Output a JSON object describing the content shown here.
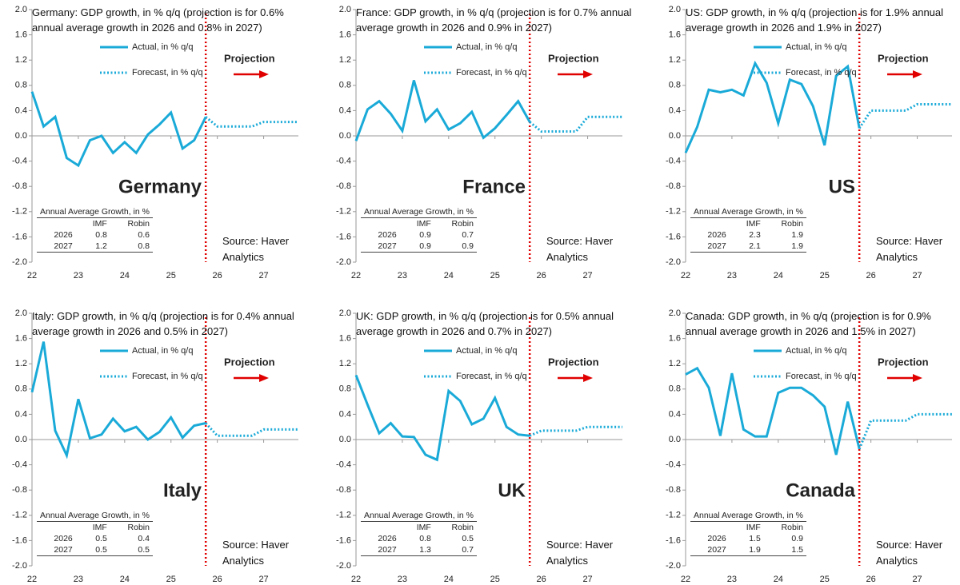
{
  "chart_data": [
    {
      "type": "line",
      "title": "Germany: GDP growth, in % q/q (projection is for 0.6% annual average growth in 2026 and 0.8% in 2027)",
      "country": "Germany",
      "x": [
        22,
        22.25,
        22.5,
        22.75,
        23,
        23.25,
        23.5,
        23.75,
        24,
        24.25,
        24.5,
        24.75,
        25,
        25.25,
        25.5,
        25.75,
        26,
        26.25,
        26.5,
        26.75,
        27,
        27.25,
        27.5,
        27.75
      ],
      "series": [
        {
          "name": "Actual, in % q/q",
          "color": "#1aaad8",
          "style": "solid",
          "values": [
            0.7,
            0.15,
            0.3,
            -0.35,
            -0.47,
            -0.07,
            0,
            -0.27,
            -0.1,
            -0.27,
            0.02,
            0.18,
            0.37,
            -0.2,
            -0.07,
            0.3,
            null,
            null,
            null,
            null,
            null,
            null,
            null,
            null
          ]
        },
        {
          "name": "Forecast, in % q/q",
          "color": "#1aaad8",
          "style": "dotted",
          "values": [
            null,
            null,
            null,
            null,
            null,
            null,
            null,
            null,
            null,
            null,
            null,
            null,
            null,
            null,
            null,
            0.3,
            0.15,
            0.15,
            0.15,
            0.15,
            0.22,
            0.22,
            0.22,
            0.22
          ]
        }
      ],
      "xlim": [
        22,
        27.75
      ],
      "xticks": [
        22,
        23,
        24,
        25,
        26,
        27
      ],
      "ylim": [
        -2,
        2
      ],
      "yticks": [
        {
          "value": -2,
          "label": "-2.0"
        },
        {
          "value": -1.6,
          "label": "-1.6"
        },
        {
          "value": -1.2,
          "label": "-1.2"
        },
        {
          "value": -0.8,
          "label": "-0.8"
        },
        {
          "value": -0.4,
          "label": "-0.4"
        },
        {
          "value": 0,
          "label": "0.0"
        },
        {
          "value": 0.4,
          "label": "0.4"
        },
        {
          "value": 0.8,
          "label": "0.8"
        },
        {
          "value": 1.2,
          "label": "1.2"
        },
        {
          "value": 1.6,
          "label": "1.6"
        },
        {
          "value": 2,
          "label": "2.0"
        }
      ],
      "projection_x": 25.75,
      "projection_label": "Projection",
      "projection_color": "#e00000",
      "table": {
        "title": "Annual Average Growth, in %",
        "columns": [
          "IMF",
          "Robin"
        ],
        "rows": [
          [
            "2026",
            0.8,
            0.6
          ],
          [
            "2027",
            1.2,
            0.8
          ]
        ]
      },
      "source": "Source: Haver Analytics"
    },
    {
      "type": "line",
      "title": "France: GDP growth, in % q/q (projection is for 0.7% annual average growth in 2026 and 0.9% in 2027)",
      "country": "France",
      "x": [
        22,
        22.25,
        22.5,
        22.75,
        23,
        23.25,
        23.5,
        23.75,
        24,
        24.25,
        24.5,
        24.75,
        25,
        25.25,
        25.5,
        25.75,
        26,
        26.25,
        26.5,
        26.75,
        27,
        27.25,
        27.5,
        27.75
      ],
      "series": [
        {
          "name": "Actual, in % q/q",
          "color": "#1aaad8",
          "style": "solid",
          "values": [
            -0.08,
            0.42,
            0.55,
            0.35,
            0.08,
            0.88,
            0.23,
            0.42,
            0.1,
            0.2,
            0.38,
            -0.03,
            0.12,
            0.33,
            0.55,
            0.22,
            null,
            null,
            null,
            null,
            null,
            null,
            null,
            null
          ]
        },
        {
          "name": "Forecast, in % q/q",
          "color": "#1aaad8",
          "style": "dotted",
          "values": [
            null,
            null,
            null,
            null,
            null,
            null,
            null,
            null,
            null,
            null,
            null,
            null,
            null,
            null,
            null,
            0.22,
            0.07,
            0.07,
            0.07,
            0.07,
            0.3,
            0.3,
            0.3,
            0.3
          ]
        }
      ],
      "xlim": [
        22,
        27.75
      ],
      "xticks": [
        22,
        23,
        24,
        25,
        26,
        27
      ],
      "ylim": [
        -2,
        2
      ],
      "yticks": [
        {
          "value": -2,
          "label": "-2.0"
        },
        {
          "value": -1.6,
          "label": "-1.6"
        },
        {
          "value": -1.2,
          "label": "-1.2"
        },
        {
          "value": -0.8,
          "label": "-0.8"
        },
        {
          "value": -0.4,
          "label": "-0.4"
        },
        {
          "value": 0,
          "label": "0.0"
        },
        {
          "value": 0.4,
          "label": "0.4"
        },
        {
          "value": 0.8,
          "label": "0.8"
        },
        {
          "value": 1.2,
          "label": "1.2"
        },
        {
          "value": 1.6,
          "label": "1.6"
        },
        {
          "value": 2,
          "label": "2.0"
        }
      ],
      "projection_x": 25.75,
      "projection_label": "Projection",
      "projection_color": "#e00000",
      "table": {
        "title": "Annual Average Growth, in %",
        "columns": [
          "IMF",
          "Robin"
        ],
        "rows": [
          [
            "2026",
            0.9,
            0.7
          ],
          [
            "2027",
            0.9,
            0.9
          ]
        ]
      },
      "source": "Source: Haver Analytics"
    },
    {
      "type": "line",
      "title": "US: GDP growth, in % q/q (projection is for 1.9% annual average growth in 2026 and 1.9% in 2027)",
      "country": "US",
      "x": [
        22,
        22.25,
        22.5,
        22.75,
        23,
        23.25,
        23.5,
        23.75,
        24,
        24.25,
        24.5,
        24.75,
        25,
        25.25,
        25.5,
        25.75,
        26,
        26.25,
        26.5,
        26.75,
        27,
        27.25,
        27.5,
        27.75
      ],
      "series": [
        {
          "name": "Actual, in % q/q",
          "color": "#1aaad8",
          "style": "solid",
          "values": [
            -0.27,
            0.14,
            0.73,
            0.69,
            0.73,
            0.64,
            1.15,
            0.84,
            0.2,
            0.89,
            0.82,
            0.47,
            -0.15,
            0.95,
            1.1,
            0.12,
            null,
            null,
            null,
            null,
            null,
            null,
            null,
            null
          ]
        },
        {
          "name": "Forecast, in % q/q",
          "color": "#1aaad8",
          "style": "dotted",
          "values": [
            null,
            null,
            null,
            null,
            null,
            null,
            null,
            null,
            null,
            null,
            null,
            null,
            null,
            null,
            null,
            0.12,
            0.4,
            0.4,
            0.4,
            0.4,
            0.5,
            0.5,
            0.5,
            0.5
          ]
        }
      ],
      "xlim": [
        22,
        27.75
      ],
      "xticks": [
        22,
        23,
        24,
        25,
        26,
        27
      ],
      "ylim": [
        -2,
        2
      ],
      "yticks": [
        {
          "value": -2,
          "label": "-2.0"
        },
        {
          "value": -1.6,
          "label": "-1.6"
        },
        {
          "value": -1.2,
          "label": "-1.2"
        },
        {
          "value": -0.8,
          "label": "-0.8"
        },
        {
          "value": -0.4,
          "label": "-0.4"
        },
        {
          "value": 0,
          "label": "0.0"
        },
        {
          "value": 0.4,
          "label": "0.4"
        },
        {
          "value": 0.8,
          "label": "0.8"
        },
        {
          "value": 1.2,
          "label": "1.2"
        },
        {
          "value": 1.6,
          "label": "1.6"
        },
        {
          "value": 2,
          "label": "2.0"
        }
      ],
      "projection_x": 25.75,
      "projection_label": "Projection",
      "projection_color": "#e00000",
      "table": {
        "title": "Annual Average Growth, in %",
        "columns": [
          "IMF",
          "Robin"
        ],
        "rows": [
          [
            "2026",
            2.3,
            1.9
          ],
          [
            "2027",
            2.1,
            1.9
          ]
        ]
      },
      "source": "Source: Haver Analytics"
    },
    {
      "type": "line",
      "title": "Italy: GDP growth, in % q/q (projection is for 0.4% annual average growth in 2026 and 0.5% in 2027)",
      "country": "Italy",
      "x": [
        22,
        22.25,
        22.5,
        22.75,
        23,
        23.25,
        23.5,
        23.75,
        24,
        24.25,
        24.5,
        24.75,
        25,
        25.25,
        25.5,
        25.75,
        26,
        26.25,
        26.5,
        26.75,
        27,
        27.25,
        27.5,
        27.75
      ],
      "series": [
        {
          "name": "Actual, in % q/q",
          "color": "#1aaad8",
          "style": "solid",
          "values": [
            0.75,
            1.55,
            0.14,
            -0.25,
            0.64,
            0.02,
            0.08,
            0.33,
            0.13,
            0.2,
            0,
            0.12,
            0.35,
            0.03,
            0.22,
            0.26,
            null,
            null,
            null,
            null,
            null,
            null,
            null,
            null
          ]
        },
        {
          "name": "Forecast, in % q/q",
          "color": "#1aaad8",
          "style": "dotted",
          "values": [
            null,
            null,
            null,
            null,
            null,
            null,
            null,
            null,
            null,
            null,
            null,
            null,
            null,
            null,
            null,
            0.26,
            0.06,
            0.06,
            0.06,
            0.06,
            0.16,
            0.16,
            0.16,
            0.16
          ]
        }
      ],
      "xlim": [
        22,
        27.75
      ],
      "xticks": [
        22,
        23,
        24,
        25,
        26,
        27
      ],
      "ylim": [
        -2,
        2
      ],
      "yticks": [
        {
          "value": -2,
          "label": "-2.0"
        },
        {
          "value": -1.6,
          "label": "-1.6"
        },
        {
          "value": -1.2,
          "label": "-1.2"
        },
        {
          "value": -0.8,
          "label": "-0.8"
        },
        {
          "value": -0.4,
          "label": "-0.4"
        },
        {
          "value": 0,
          "label": "0.0"
        },
        {
          "value": 0.4,
          "label": "0.4"
        },
        {
          "value": 0.8,
          "label": "0.8"
        },
        {
          "value": 1.2,
          "label": "1.2"
        },
        {
          "value": 1.6,
          "label": "1.6"
        },
        {
          "value": 2,
          "label": "2.0"
        }
      ],
      "projection_x": 25.75,
      "projection_label": "Projection",
      "projection_color": "#e00000",
      "table": {
        "title": "Annual Average Growth, in %",
        "columns": [
          "IMF",
          "Robin"
        ],
        "rows": [
          [
            "2026",
            0.5,
            0.4
          ],
          [
            "2027",
            0.5,
            0.5
          ]
        ]
      },
      "source": "Source: Haver Analytics"
    },
    {
      "type": "line",
      "title": "UK: GDP growth, in % q/q (projection is for 0.5% annual average growth in 2026 and 0.7% in 2027)",
      "country": "UK",
      "x": [
        22,
        22.25,
        22.5,
        22.75,
        23,
        23.25,
        23.5,
        23.75,
        24,
        24.25,
        24.5,
        24.75,
        25,
        25.25,
        25.5,
        25.75,
        26,
        26.25,
        26.5,
        26.75,
        27,
        27.25,
        27.5,
        27.75
      ],
      "series": [
        {
          "name": "Actual, in % q/q",
          "color": "#1aaad8",
          "style": "solid",
          "values": [
            1.02,
            0.55,
            0.1,
            0.26,
            0.05,
            0.04,
            -0.24,
            -0.32,
            0.77,
            0.61,
            0.24,
            0.33,
            0.66,
            0.2,
            0.08,
            0.06,
            null,
            null,
            null,
            null,
            null,
            null,
            null,
            null
          ]
        },
        {
          "name": "Forecast, in % q/q",
          "color": "#1aaad8",
          "style": "dotted",
          "values": [
            null,
            null,
            null,
            null,
            null,
            null,
            null,
            null,
            null,
            null,
            null,
            null,
            null,
            null,
            null,
            0.06,
            0.14,
            0.14,
            0.14,
            0.14,
            0.2,
            0.2,
            0.2,
            0.2
          ]
        }
      ],
      "xlim": [
        22,
        27.75
      ],
      "xticks": [
        22,
        23,
        24,
        25,
        26,
        27
      ],
      "ylim": [
        -2,
        2
      ],
      "yticks": [
        {
          "value": -2,
          "label": "-2.0"
        },
        {
          "value": -1.6,
          "label": "-1.6"
        },
        {
          "value": -1.2,
          "label": "-1.2"
        },
        {
          "value": -0.8,
          "label": "-0.8"
        },
        {
          "value": -0.4,
          "label": "-0.4"
        },
        {
          "value": 0,
          "label": "0.0"
        },
        {
          "value": 0.4,
          "label": "0.4"
        },
        {
          "value": 0.8,
          "label": "0.8"
        },
        {
          "value": 1.2,
          "label": "1.2"
        },
        {
          "value": 1.6,
          "label": "1.6"
        },
        {
          "value": 2,
          "label": "2.0"
        }
      ],
      "projection_x": 25.75,
      "projection_label": "Projection",
      "projection_color": "#e00000",
      "table": {
        "title": "Annual Average Growth, in %",
        "columns": [
          "IMF",
          "Robin"
        ],
        "rows": [
          [
            "2026",
            0.8,
            0.5
          ],
          [
            "2027",
            1.3,
            0.7
          ]
        ]
      },
      "source": "Source: Haver Analytics"
    },
    {
      "type": "line",
      "title": "Canada: GDP growth, in % q/q (projection is for 0.9% annual average growth in 2026 and 1.5% in 2027)",
      "country": "Canada",
      "x": [
        22,
        22.25,
        22.5,
        22.75,
        23,
        23.25,
        23.5,
        23.75,
        24,
        24.25,
        24.5,
        24.75,
        25,
        25.25,
        25.5,
        25.75,
        26,
        26.25,
        26.5,
        26.75,
        27,
        27.25,
        27.5,
        27.75
      ],
      "series": [
        {
          "name": "Actual, in % q/q",
          "color": "#1aaad8",
          "style": "solid",
          "values": [
            1.03,
            1.13,
            0.82,
            0.06,
            1.05,
            0.16,
            0.05,
            0.05,
            0.74,
            0.82,
            0.82,
            0.7,
            0.52,
            -0.24,
            0.6,
            -0.15,
            null,
            null,
            null,
            null,
            null,
            null,
            null,
            null
          ]
        },
        {
          "name": "Forecast, in % q/q",
          "color": "#1aaad8",
          "style": "dotted",
          "values": [
            null,
            null,
            null,
            null,
            null,
            null,
            null,
            null,
            null,
            null,
            null,
            null,
            null,
            null,
            null,
            -0.15,
            0.3,
            0.3,
            0.3,
            0.3,
            0.4,
            0.4,
            0.4,
            0.4
          ]
        }
      ],
      "xlim": [
        22,
        27.75
      ],
      "xticks": [
        22,
        23,
        24,
        25,
        26,
        27
      ],
      "ylim": [
        -2,
        2
      ],
      "yticks": [
        {
          "value": -2,
          "label": "-2.0"
        },
        {
          "value": -1.6,
          "label": "-1.6"
        },
        {
          "value": -1.2,
          "label": "-1.2"
        },
        {
          "value": -0.8,
          "label": "-0.8"
        },
        {
          "value": -0.4,
          "label": "-0.4"
        },
        {
          "value": 0,
          "label": "0.0"
        },
        {
          "value": 0.4,
          "label": "0.4"
        },
        {
          "value": 0.8,
          "label": "0.8"
        },
        {
          "value": 1.2,
          "label": "1.2"
        },
        {
          "value": 1.6,
          "label": "1.6"
        },
        {
          "value": 2,
          "label": "2.0"
        }
      ],
      "projection_x": 25.75,
      "projection_label": "Projection",
      "projection_color": "#e00000",
      "table": {
        "title": "Annual Average Growth, in %",
        "columns": [
          "IMF",
          "Robin"
        ],
        "rows": [
          [
            "2026",
            1.5,
            0.9
          ],
          [
            "2027",
            1.9,
            1.5
          ]
        ]
      },
      "source": "Source: Haver Analytics"
    }
  ]
}
